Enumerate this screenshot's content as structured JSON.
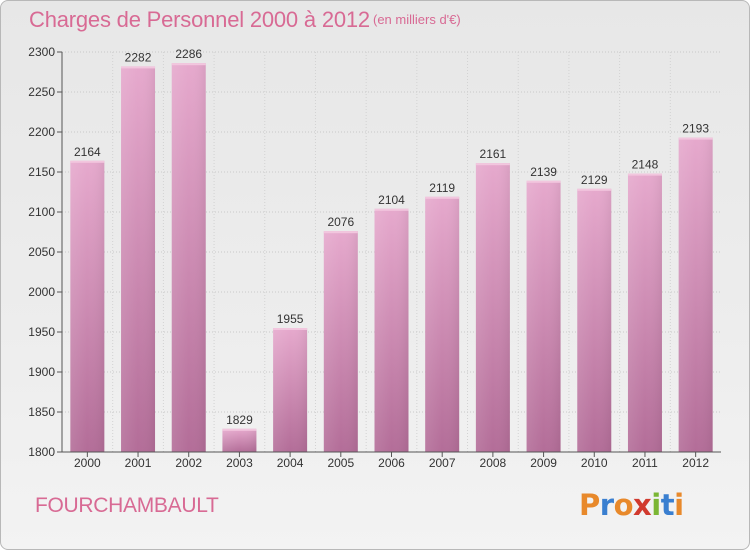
{
  "header": {
    "title": "Charges de Personnel 2000 à 2012",
    "subtitle": "(en milliers d'€)"
  },
  "footer": {
    "commune": "FOURCHAMBAULT",
    "logo_text": "Proxiti",
    "logo_colors": [
      "#e8892b",
      "#3a7fd0",
      "#e8892b",
      "#d13a2e",
      "#7bb634",
      "#3a7fd0",
      "#e8892b"
    ]
  },
  "chart_data": {
    "type": "bar",
    "title": "Charges de Personnel 2000 à 2012",
    "subtitle": "(en milliers d'€)",
    "xlabel": "",
    "ylabel": "",
    "categories": [
      "2000",
      "2001",
      "2002",
      "2003",
      "2004",
      "2005",
      "2006",
      "2007",
      "2008",
      "2009",
      "2010",
      "2011",
      "2012"
    ],
    "values": [
      2164,
      2282,
      2286,
      1829,
      1955,
      2076,
      2104,
      2119,
      2161,
      2139,
      2129,
      2148,
      2193
    ],
    "ylim": [
      1800,
      2300
    ],
    "yticks": [
      1800,
      1850,
      1900,
      1950,
      2000,
      2050,
      2100,
      2150,
      2200,
      2250,
      2300
    ],
    "grid": true,
    "legend": "none",
    "bar_color": "#d98ab5"
  }
}
